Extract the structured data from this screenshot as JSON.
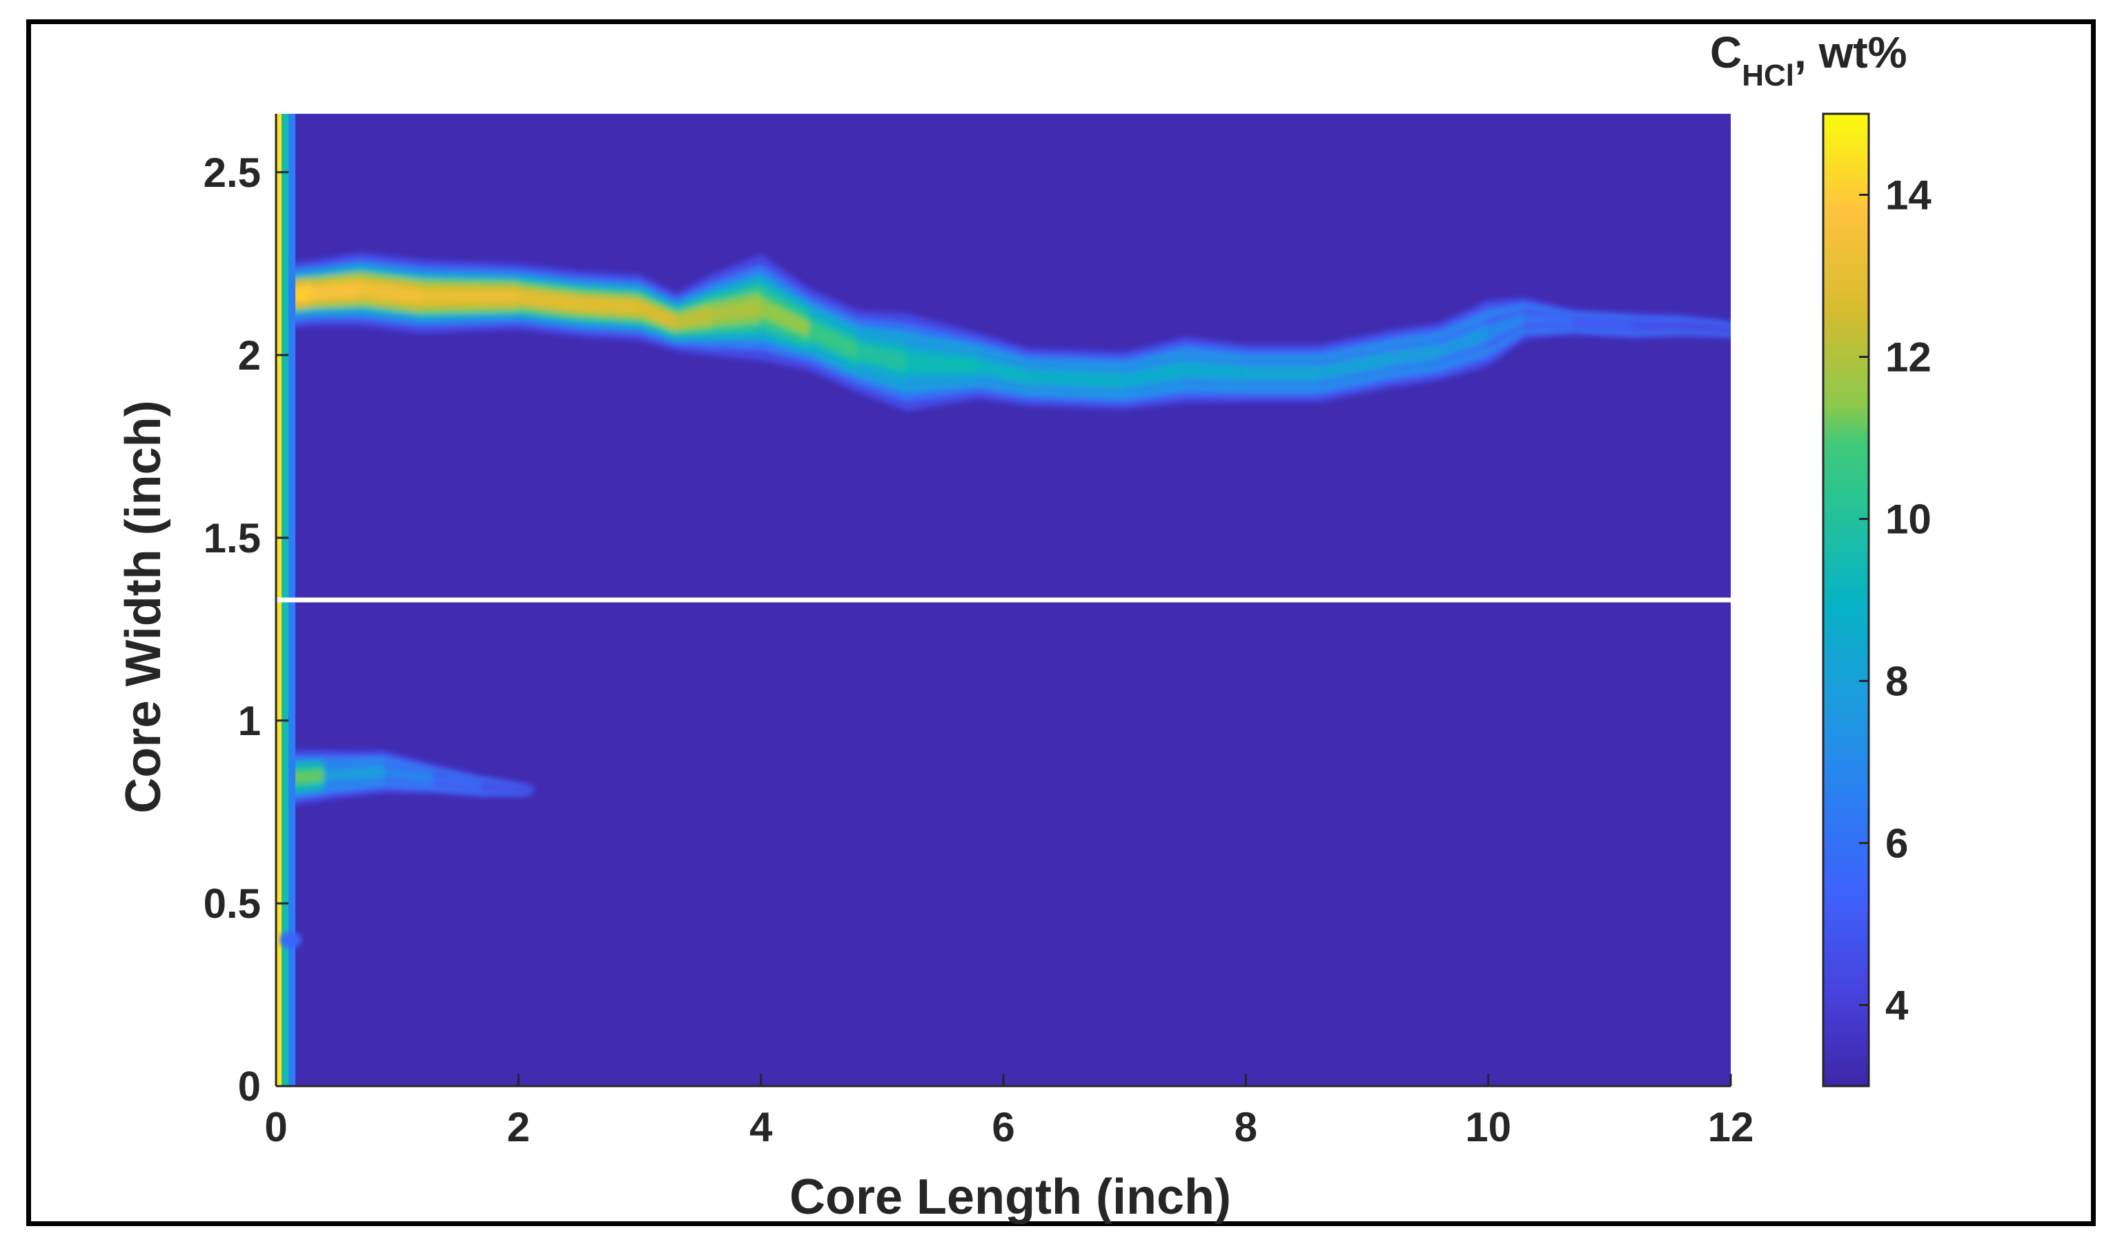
{
  "chart_data": {
    "type": "heatmap",
    "xlabel": "Core Length (inch)",
    "ylabel": "Core Width (inch)",
    "xlim": [
      0,
      12
    ],
    "ylim": [
      0,
      2.66
    ],
    "x_ticks": [
      0,
      2,
      4,
      6,
      8,
      10,
      12
    ],
    "y_ticks": [
      0,
      0.5,
      1,
      1.5,
      2,
      2.5
    ],
    "colorbar": {
      "title_main": "C",
      "title_sub": "HCl",
      "title_rest": ", wt%",
      "range": [
        3,
        15
      ],
      "ticks": [
        4,
        6,
        8,
        10,
        12,
        14
      ],
      "colormap": "parula"
    },
    "divider_y": 1.33,
    "background_value": 3.2,
    "inlet_face": {
      "x_range": [
        0,
        0.08
      ],
      "value": 14.5
    },
    "wormholes": [
      {
        "name": "upper",
        "x": [
          0,
          0.3,
          0.7,
          1.2,
          2.0,
          2.5,
          3.0,
          3.3,
          3.6,
          4.0,
          4.4,
          4.8,
          5.2,
          5.8,
          6.2,
          7.0,
          7.5,
          8.0,
          8.6,
          9.2,
          9.6,
          10.0,
          10.3,
          10.7,
          11.2,
          11.6,
          12.0
        ],
        "y": [
          2.16,
          2.17,
          2.18,
          2.16,
          2.16,
          2.14,
          2.13,
          2.09,
          2.11,
          2.13,
          2.07,
          2.01,
          1.98,
          1.97,
          1.94,
          1.93,
          1.96,
          1.95,
          1.95,
          1.99,
          2.01,
          2.06,
          2.1,
          2.09,
          2.08,
          2.08,
          2.07
        ],
        "c": [
          14.3,
          13.8,
          13.4,
          13.3,
          13.0,
          12.8,
          12.9,
          12.4,
          12.0,
          11.8,
          11.2,
          10.0,
          9.8,
          9.0,
          8.9,
          8.7,
          8.5,
          8.4,
          8.2,
          8.0,
          7.8,
          7.3,
          6.4,
          5.6,
          5.0,
          4.7,
          4.5
        ],
        "width": [
          0.08,
          0.08,
          0.09,
          0.09,
          0.08,
          0.08,
          0.08,
          0.07,
          0.1,
          0.13,
          0.1,
          0.1,
          0.12,
          0.08,
          0.07,
          0.07,
          0.08,
          0.07,
          0.07,
          0.07,
          0.07,
          0.08,
          0.05,
          0.03,
          0.03,
          0.025,
          0.02
        ]
      },
      {
        "name": "lower",
        "x": [
          0,
          0.4,
          0.9,
          1.3,
          1.7,
          2.05
        ],
        "y": [
          0.84,
          0.85,
          0.86,
          0.84,
          0.82,
          0.81
        ],
        "c": [
          14.0,
          8.3,
          7.5,
          6.3,
          5.2,
          4.3
        ],
        "width": [
          0.07,
          0.06,
          0.05,
          0.035,
          0.025,
          0.015
        ]
      }
    ]
  }
}
